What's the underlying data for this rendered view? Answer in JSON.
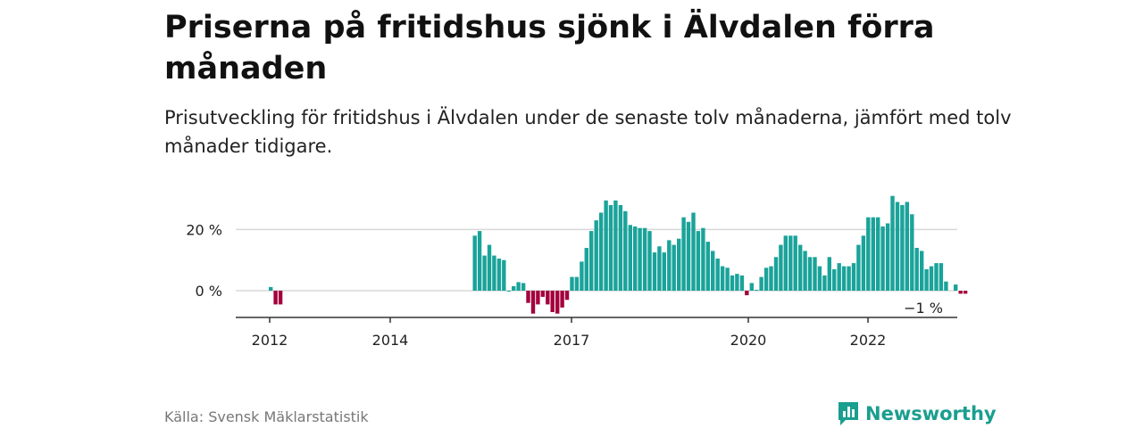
{
  "title": "Priserna på fritidshus sjönk i Älvdalen förra månaden",
  "subtitle": "Prisutveckling för fritidshus i Älvdalen under de senaste tolv månaderna, jämfört med tolv månader tidigare.",
  "source": "Källa: Svensk Mäklarstatistik",
  "brand": "Newsworthy",
  "colors": {
    "positive": "#1aa39a",
    "negative": "#a3003c",
    "brand": "#1a9e8f"
  },
  "chart_data": {
    "type": "bar",
    "ylim": [
      -8,
      32
    ],
    "yticks": [
      {
        "value": 20,
        "label": "20 %"
      },
      {
        "value": 0,
        "label": "0 %"
      }
    ],
    "xticks": [
      "2012",
      "2014",
      "2017",
      "2020",
      "2022"
    ],
    "last_value_label": "−1 %",
    "grid": true,
    "values": [
      1.2,
      -4.5,
      -4.5,
      null,
      null,
      null,
      null,
      null,
      null,
      null,
      null,
      null,
      null,
      null,
      null,
      null,
      null,
      null,
      null,
      null,
      null,
      null,
      null,
      null,
      null,
      null,
      null,
      null,
      null,
      null,
      null,
      null,
      null,
      null,
      null,
      null,
      null,
      null,
      null,
      null,
      null,
      null,
      18,
      19.5,
      11.5,
      15,
      11.5,
      10.5,
      10,
      0,
      1.5,
      2.8,
      2.5,
      -4,
      -7.5,
      -4.5,
      -2,
      -4.5,
      -7,
      -7.5,
      -5.5,
      -3,
      4.5,
      4.5,
      9.5,
      14,
      19.5,
      23,
      25.5,
      29.5,
      28,
      29.5,
      28,
      26,
      21.5,
      21,
      20.5,
      20.5,
      19.5,
      12.5,
      14.5,
      12.5,
      16.5,
      15,
      17,
      24,
      22.5,
      25.5,
      19.5,
      20.5,
      16,
      13,
      10.5,
      8,
      7.5,
      5,
      5.5,
      5,
      -1.5,
      2.5,
      0.3,
      4.5,
      7.5,
      8,
      11,
      15,
      18,
      18,
      18,
      15,
      13,
      11,
      11,
      8,
      5,
      11,
      7,
      9,
      8,
      8,
      9,
      15,
      18,
      24,
      24,
      24,
      21,
      22,
      31,
      29,
      28,
      29,
      25,
      14,
      13,
      7,
      8,
      9,
      9,
      3,
      null,
      2,
      -1,
      -1
    ]
  }
}
